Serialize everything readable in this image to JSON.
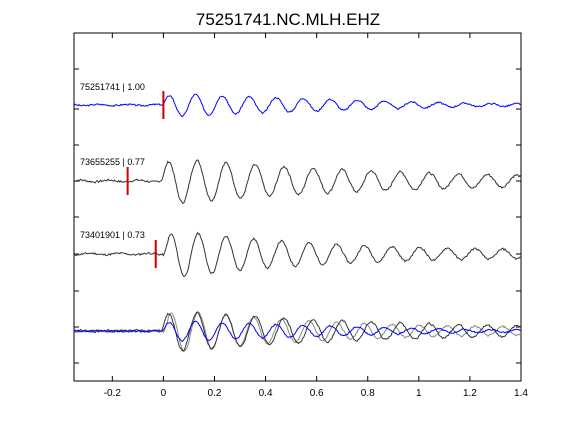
{
  "chart_data": {
    "type": "line",
    "title": "75251741.NC.MLH.EHZ",
    "xlabel": "",
    "ylabel": "",
    "xlim": [
      -0.35,
      1.4
    ],
    "xticks": [
      -0.2,
      0,
      0.2,
      0.4,
      0.6,
      0.8,
      1,
      1.2,
      1.4
    ],
    "xtick_labels": [
      "-0.2",
      "0",
      "0.2",
      "0.4",
      "0.6",
      "0.8",
      "1",
      "1.2",
      "1.4"
    ],
    "grid": false,
    "legend": "none",
    "pick_color": "#cc0000",
    "overlay_label": "",
    "traces": [
      {
        "label": "75251741 | 1.00",
        "color": "#0000ff",
        "pick_time": 0.0,
        "onset": -0.005,
        "amplitude": 13,
        "decay": 1.4,
        "freq": 9.5,
        "noise": 2.5,
        "seed": 3
      },
      {
        "label": "73655255 | 0.77",
        "color": "#333333",
        "pick_time": -0.14,
        "onset": -0.01,
        "amplitude": 23,
        "decay": 1.1,
        "freq": 8.8,
        "noise": 3.5,
        "seed": 7
      },
      {
        "label": "73401901 | 0.73",
        "color": "#333333",
        "pick_time": -0.03,
        "onset": 0.0,
        "amplitude": 25,
        "decay": 1.3,
        "freq": 9.2,
        "noise": 3,
        "seed": 11
      }
    ],
    "overlay_colors": [
      "#0000ff",
      "#333333",
      "#888888"
    ]
  }
}
